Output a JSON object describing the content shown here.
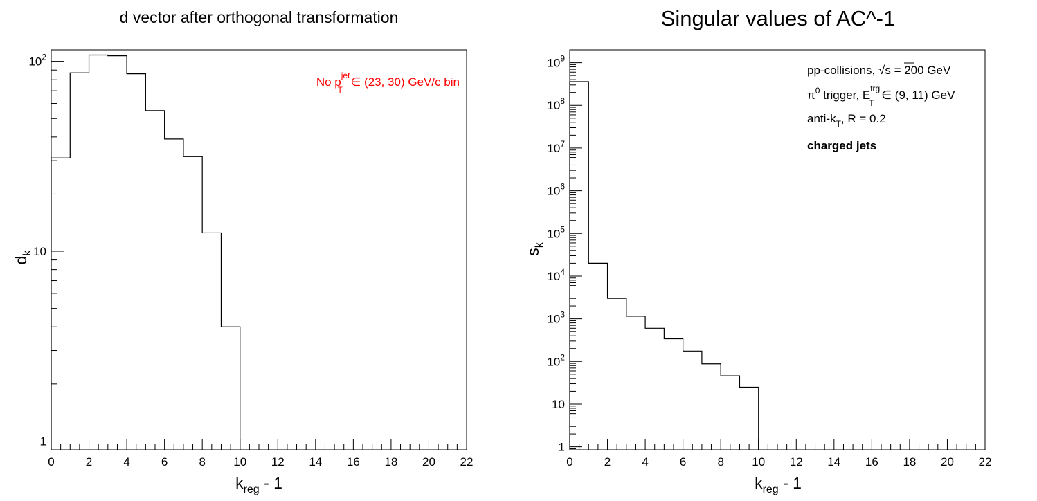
{
  "chart_data": [
    {
      "type": "histogram",
      "title": "d vector after orthogonal transformation",
      "xlabel": {
        "main": "k",
        "sub": "reg",
        "tail": " - 1"
      },
      "ylabel": {
        "main": "d",
        "sub": "k"
      },
      "xlim": [
        0,
        22
      ],
      "ylim": [
        0.9,
        115
      ],
      "yscale": "log",
      "xticks": [
        "0",
        "2",
        "4",
        "6",
        "8",
        "10",
        "12",
        "14",
        "16",
        "18",
        "20",
        "22"
      ],
      "yticks": [
        {
          "value": 1,
          "base": "1",
          "exp": ""
        },
        {
          "value": 10,
          "base": "10",
          "exp": ""
        },
        {
          "value": 100,
          "base": "10",
          "exp": "2"
        }
      ],
      "bin_edges": [
        0,
        1,
        2,
        3,
        4,
        5,
        6,
        7,
        8,
        9,
        10
      ],
      "values": [
        31,
        87,
        108,
        107,
        86,
        55,
        39,
        31.5,
        12.5,
        4.0
      ],
      "annotation": {
        "color": "#ff0000",
        "pre": "No p",
        "sup": "jet",
        "sub": "T",
        "post": " ∈ (23, 30) GeV/c bin"
      }
    },
    {
      "type": "histogram",
      "title": "Singular values of AC^-1",
      "xlabel": {
        "main": "k",
        "sub": "reg",
        "tail": " - 1"
      },
      "ylabel": {
        "main": "s",
        "sub": "k"
      },
      "xlim": [
        0,
        22
      ],
      "ylim": [
        0.85,
        2000000000
      ],
      "yscale": "log",
      "xticks": [
        "0",
        "2",
        "4",
        "6",
        "8",
        "10",
        "12",
        "14",
        "16",
        "18",
        "20",
        "22"
      ],
      "yticks": [
        {
          "value": 1,
          "base": "1",
          "exp": ""
        },
        {
          "value": 10,
          "base": "10",
          "exp": ""
        },
        {
          "value": 100,
          "base": "10",
          "exp": "2"
        },
        {
          "value": 1000,
          "base": "10",
          "exp": "3"
        },
        {
          "value": 10000,
          "base": "10",
          "exp": "4"
        },
        {
          "value": 100000,
          "base": "10",
          "exp": "5"
        },
        {
          "value": 1000000,
          "base": "10",
          "exp": "6"
        },
        {
          "value": 10000000,
          "base": "10",
          "exp": "7"
        },
        {
          "value": 100000000,
          "base": "10",
          "exp": "8"
        },
        {
          "value": 1000000000,
          "base": "10",
          "exp": "9"
        }
      ],
      "bin_edges": [
        0,
        1,
        2,
        3,
        4,
        5,
        6,
        7,
        8,
        9,
        10
      ],
      "values": [
        360000000,
        20000,
        3000,
        1150,
        600,
        340,
        175,
        88,
        46,
        25
      ],
      "legend_lines": [
        {
          "pre": "pp-collisions, ",
          "sqrt": "√s",
          "post": " = 200 GeV"
        },
        {
          "pre": "π",
          "sup0": "0",
          "mid": " trigger, E",
          "sup": "trg",
          "sub": "T",
          "post": " ∈ (9, 11) GeV"
        },
        {
          "pre": "anti-k",
          "sub": "T",
          "post": ", R = 0.2"
        },
        {
          "bold": "charged jets"
        }
      ]
    }
  ]
}
